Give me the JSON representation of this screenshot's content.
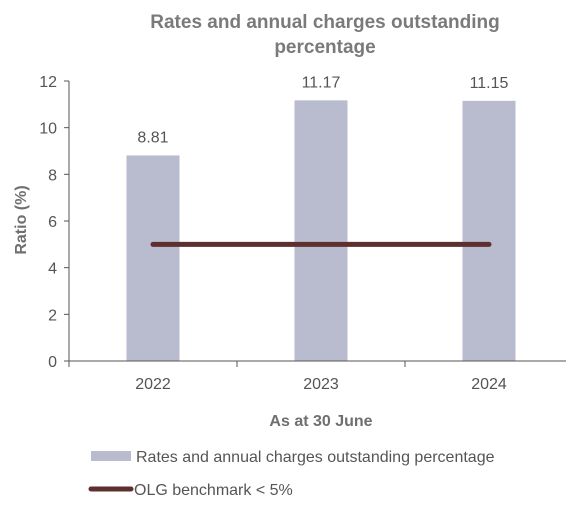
{
  "chart_data": {
    "type": "bar",
    "title_lines": [
      "Rates and annual charges outstanding",
      "percentage"
    ],
    "xlabel": "As at 30 June",
    "ylabel": "Ratio (%)",
    "categories": [
      "2022",
      "2023",
      "2024"
    ],
    "ylim": [
      0,
      12
    ],
    "yticks": [
      "0",
      "2",
      "4",
      "6",
      "8",
      "10",
      "12"
    ],
    "grid": false,
    "series": [
      {
        "name": "Rates and annual charges outstanding percentage",
        "type": "bar",
        "values": [
          8.81,
          11.17,
          11.15
        ],
        "labels": [
          "8.81",
          "11.17",
          "11.15"
        ],
        "color": "#b9bccf"
      },
      {
        "name": "OLG benchmark < 5%",
        "type": "line",
        "values": [
          5,
          5,
          5
        ],
        "color": "#5e2f2f"
      }
    ],
    "legend_position": "bottom-left"
  }
}
